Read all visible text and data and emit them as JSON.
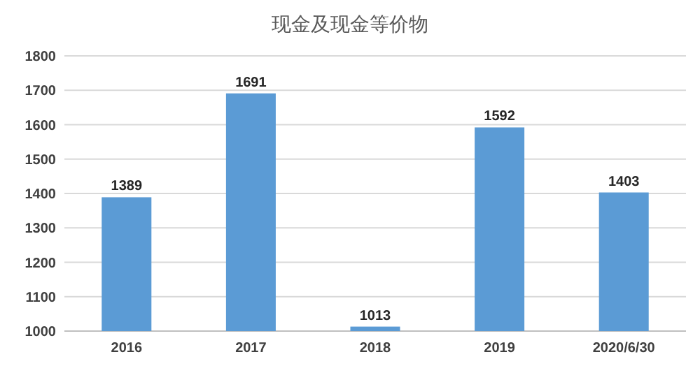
{
  "chart_data": {
    "type": "bar",
    "title": "现金及现金等价物",
    "categories": [
      "2016",
      "2017",
      "2018",
      "2019",
      "2020/6/30"
    ],
    "values": [
      1389,
      1691,
      1013,
      1592,
      1403
    ],
    "color": "#5b9bd5",
    "ylim": [
      1000,
      1800
    ],
    "yticks": [
      1000,
      1100,
      1200,
      1300,
      1400,
      1500,
      1600,
      1700,
      1800
    ],
    "grid": "y",
    "data_labels": true
  }
}
